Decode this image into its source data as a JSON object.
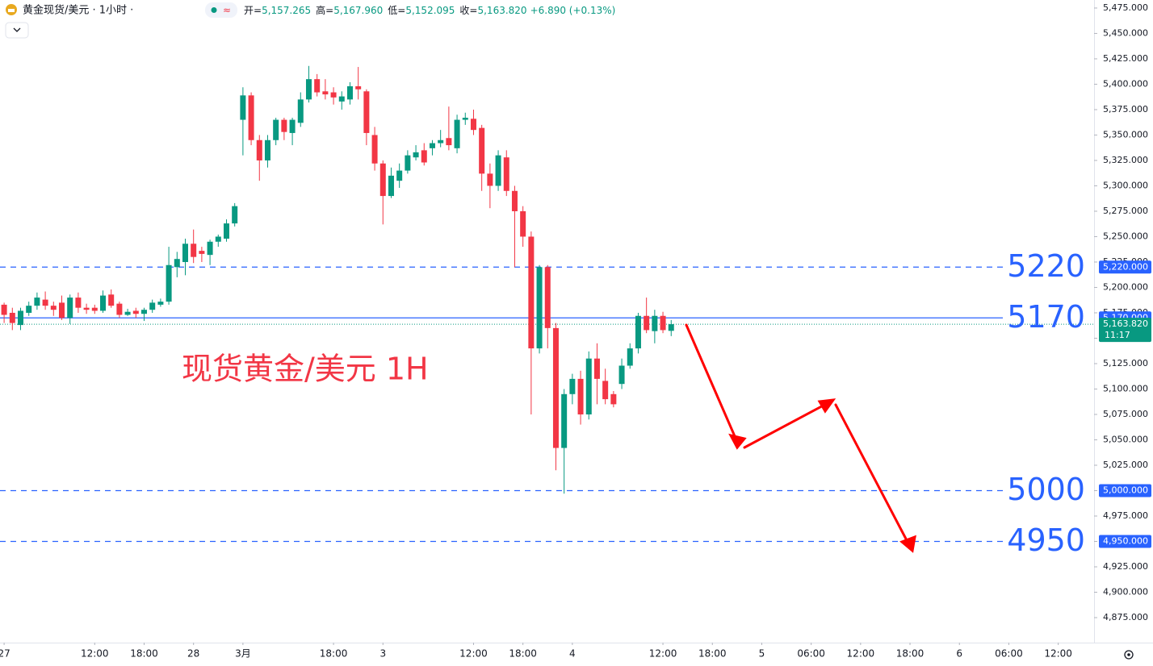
{
  "header": {
    "symbol": "黄金现货/美元 · 1小时 ·",
    "ohlc": [
      {
        "label": "开=",
        "value": "5,157.265"
      },
      {
        "label": "高=",
        "value": "5,167.960"
      },
      {
        "label": "低=",
        "value": "5,152.095"
      },
      {
        "label": "收=",
        "value": "5,163.820"
      }
    ],
    "change": "+6.890 (+0.13%)"
  },
  "chart_data": {
    "type": "candlestick",
    "up_color": "#089981",
    "down_color": "#f23645",
    "x": [
      0,
      1,
      2,
      3,
      4,
      5,
      6,
      7,
      8,
      9,
      10,
      11,
      12,
      13,
      14,
      15,
      16,
      17,
      18,
      19,
      20,
      21,
      22,
      23,
      24,
      25,
      26,
      27,
      28,
      29,
      30,
      31,
      32,
      33,
      34,
      35,
      36,
      37,
      38,
      39,
      40,
      41,
      42,
      43,
      44,
      45,
      46,
      47,
      48,
      49,
      50,
      51,
      52,
      53,
      54,
      55,
      56,
      57,
      58,
      59,
      60,
      61,
      62,
      63,
      64,
      65,
      66,
      67,
      68,
      69,
      70,
      71,
      72,
      73,
      74,
      75,
      76,
      77,
      78,
      79,
      80,
      81
    ],
    "open": [
      5183,
      5175,
      5163,
      5175,
      5182,
      5188,
      5182,
      5185,
      5170,
      5190,
      5180,
      5180,
      5177,
      5193,
      5184,
      5173,
      5177,
      5174,
      5178,
      5183,
      5186,
      5220,
      5225,
      5243,
      5236,
      5232,
      5245,
      5248,
      5263,
      5365,
      5389,
      5345,
      5325,
      5345,
      5365,
      5352,
      5362,
      5385,
      5405,
      5393,
      5392,
      5383,
      5385,
      5398,
      5393,
      5350,
      5322,
      5290,
      5305,
      5315,
      5328,
      5335,
      5337,
      5342,
      5347,
      5337,
      5365,
      5366,
      5357,
      5312,
      5300,
      5328,
      5295,
      5275,
      5250,
      5140,
      5220,
      5160,
      5042,
      5095,
      5110,
      5075,
      5130,
      5108,
      5095,
      5105,
      5123,
      5140,
      5172,
      5157,
      5172,
      5157.265
    ],
    "high": [
      5185,
      5180,
      5180,
      5186,
      5195,
      5196,
      5186,
      5192,
      5193,
      5195,
      5184,
      5183,
      5197,
      5198,
      5186,
      5179,
      5180,
      5180,
      5188,
      5189,
      5240,
      5235,
      5248,
      5257,
      5240,
      5247,
      5252,
      5267,
      5283,
      5397,
      5392,
      5350,
      5350,
      5367,
      5367,
      5367,
      5392,
      5418,
      5410,
      5405,
      5397,
      5393,
      5402,
      5417,
      5395,
      5358,
      5325,
      5318,
      5322,
      5335,
      5340,
      5342,
      5345,
      5355,
      5378,
      5370,
      5372,
      5375,
      5360,
      5322,
      5335,
      5335,
      5300,
      5280,
      5255,
      5222,
      5222,
      5165,
      5100,
      5115,
      5118,
      5137,
      5145,
      5120,
      5098,
      5130,
      5145,
      5175,
      5190,
      5178,
      5176,
      5167.96
    ],
    "low": [
      5165,
      5158,
      5158,
      5172,
      5178,
      5178,
      5172,
      5168,
      5164,
      5175,
      5174,
      5174,
      5175,
      5180,
      5170,
      5172,
      5170,
      5167,
      5175,
      5181,
      5183,
      5210,
      5212,
      5224,
      5225,
      5222,
      5240,
      5245,
      5260,
      5330,
      5340,
      5305,
      5318,
      5340,
      5345,
      5340,
      5358,
      5382,
      5388,
      5385,
      5380,
      5375,
      5380,
      5385,
      5340,
      5315,
      5262,
      5288,
      5298,
      5312,
      5325,
      5320,
      5330,
      5338,
      5335,
      5332,
      5360,
      5350,
      5295,
      5278,
      5295,
      5290,
      5220,
      5240,
      5075,
      5135,
      5140,
      5020,
      4997,
      5085,
      5065,
      5070,
      5085,
      5085,
      5082,
      5100,
      5120,
      5135,
      5155,
      5145,
      5155,
      5152.095
    ],
    "close": [
      5173,
      5165,
      5177,
      5182,
      5190,
      5182,
      5178,
      5170,
      5190,
      5180,
      5178,
      5177,
      5192,
      5182,
      5173,
      5176,
      5174,
      5178,
      5185,
      5186,
      5222,
      5228,
      5243,
      5230,
      5233,
      5245,
      5250,
      5263,
      5280,
      5389,
      5345,
      5325,
      5345,
      5365,
      5353,
      5365,
      5385,
      5405,
      5392,
      5390,
      5387,
      5388,
      5398,
      5395,
      5352,
      5322,
      5290,
      5310,
      5315,
      5330,
      5333,
      5323,
      5342,
      5345,
      5340,
      5365,
      5367,
      5355,
      5312,
      5300,
      5330,
      5295,
      5275,
      5250,
      5140,
      5220,
      5160,
      5042,
      5095,
      5110,
      5075,
      5130,
      5110,
      5090,
      5085,
      5123,
      5140,
      5172,
      5158,
      5172,
      5158,
      5163.82
    ],
    "xlim": [
      -0.5,
      132.35
    ],
    "xticks": [
      {
        "value": 0,
        "label": "27"
      },
      {
        "value": 11,
        "label": "12:00"
      },
      {
        "value": 17,
        "label": "18:00"
      },
      {
        "value": 23,
        "label": "28"
      },
      {
        "value": 29,
        "label": "3月"
      },
      {
        "value": 40,
        "label": "18:00"
      },
      {
        "value": 46,
        "label": "3"
      },
      {
        "value": 57,
        "label": "12:00"
      },
      {
        "value": 63,
        "label": "18:00"
      },
      {
        "value": 69,
        "label": "4"
      },
      {
        "value": 80,
        "label": "12:00"
      },
      {
        "value": 86,
        "label": "18:00"
      },
      {
        "value": 92,
        "label": "5"
      },
      {
        "value": 98,
        "label": "06:00"
      },
      {
        "value": 104,
        "label": "12:00"
      },
      {
        "value": 110,
        "label": "18:00"
      },
      {
        "value": 116,
        "label": "6"
      },
      {
        "value": 122,
        "label": "06:00"
      },
      {
        "value": 128,
        "label": "12:00"
      }
    ],
    "ylim": [
      4850.4,
      5482.9
    ],
    "yticks": [
      {
        "value": 5475,
        "label": "5,475.000"
      },
      {
        "value": 5450,
        "label": "5,450.000"
      },
      {
        "value": 5425,
        "label": "5,425.000"
      },
      {
        "value": 5400,
        "label": "5,400.000"
      },
      {
        "value": 5375,
        "label": "5,375.000"
      },
      {
        "value": 5350,
        "label": "5,350.000"
      },
      {
        "value": 5325,
        "label": "5,325.000"
      },
      {
        "value": 5300,
        "label": "5,300.000"
      },
      {
        "value": 5275,
        "label": "5,275.000"
      },
      {
        "value": 5250,
        "label": "5,250.000"
      },
      {
        "value": 5225,
        "label": "5,225.000"
      },
      {
        "value": 5200,
        "label": "5,200.000"
      },
      {
        "value": 5175,
        "label": "5,175.000"
      },
      {
        "value": 5150,
        "label": "5,150.000"
      },
      {
        "value": 5125,
        "label": "5,125.000"
      },
      {
        "value": 5100,
        "label": "5,100.000"
      },
      {
        "value": 5075,
        "label": "5,075.000"
      },
      {
        "value": 5050,
        "label": "5,050.000"
      },
      {
        "value": 5025,
        "label": "5,025.000"
      },
      {
        "value": 5000,
        "label": "5,000.000"
      },
      {
        "value": 4975,
        "label": "4,975.000"
      },
      {
        "value": 4950,
        "label": "4,950.000"
      },
      {
        "value": 4925,
        "label": "4,925.000"
      },
      {
        "value": 4900,
        "label": "4,900.000"
      },
      {
        "value": 4875,
        "label": "4,875.000"
      }
    ],
    "grid": false,
    "level_color": "#2962ff",
    "levels": [
      {
        "value": 5220,
        "axis_label": "5,220.000",
        "style": "dashed"
      },
      {
        "value": 5170,
        "axis_label": "5,170.000",
        "style": "solid"
      },
      {
        "value": 5000,
        "axis_label": "5,000.000",
        "style": "dashed"
      },
      {
        "value": 4950,
        "axis_label": "4,950.000",
        "style": "dashed"
      }
    ],
    "last_price": {
      "value": 5163.82,
      "label": "5,163.820",
      "countdown": "11:17",
      "color": "#089981"
    },
    "annotation": "现货黄金/美元 1H",
    "annotation_color": "#f23645"
  }
}
